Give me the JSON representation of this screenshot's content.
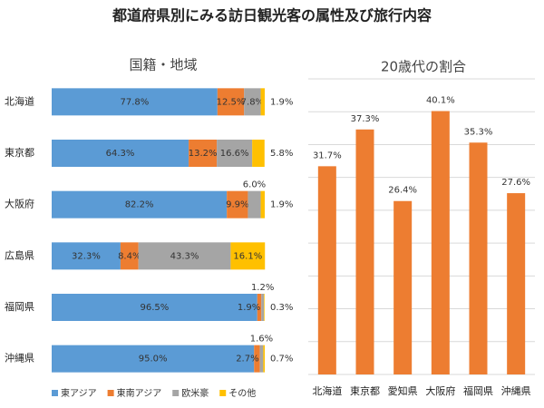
{
  "title": "都道府県別にみる訪日観光客の属性及び旅行内容",
  "chart_data": [
    {
      "type": "stacked-barh",
      "title": "国籍・地域",
      "categories": [
        "北海道",
        "東京都",
        "大阪府",
        "広島県",
        "福岡県",
        "沖縄県"
      ],
      "xlim": [
        0,
        100
      ],
      "legend": "bottom",
      "series": [
        {
          "name": "東アジア",
          "color": "#5b9bd5",
          "values": [
            77.8,
            64.3,
            82.2,
            32.3,
            96.5,
            95.0
          ],
          "value_labels": [
            "77.8%",
            "64.3%",
            "82.2%",
            "32.3%",
            "96.5%",
            "95.0%"
          ]
        },
        {
          "name": "東南アジア",
          "color": "#ed7d31",
          "values": [
            12.5,
            13.2,
            9.9,
            8.4,
            1.9,
            2.7
          ],
          "value_labels": [
            "12.5%",
            "13.2%",
            "9.9%",
            "8.4%",
            "1.9%",
            "2.7%"
          ]
        },
        {
          "name": "欧米豪",
          "color": "#a5a5a5",
          "values": [
            7.8,
            16.6,
            6.0,
            43.3,
            1.2,
            1.6
          ],
          "value_labels": [
            "7.8%",
            "16.6%",
            "6.0%",
            "43.3%",
            "1.2%",
            "1.6%"
          ]
        },
        {
          "name": "その他",
          "color": "#ffc000",
          "values": [
            1.9,
            5.8,
            1.9,
            16.1,
            0.3,
            0.7
          ],
          "value_labels": [
            "1.9%",
            "5.8%",
            "1.9%",
            "16.1%",
            "0.3%",
            "0.7%"
          ]
        }
      ]
    },
    {
      "type": "bar",
      "title": "20歳代の割合",
      "categories": [
        "北海道",
        "東京都",
        "愛知県",
        "大阪府",
        "福岡県",
        "沖縄県"
      ],
      "values": [
        31.7,
        37.3,
        26.4,
        40.1,
        35.3,
        27.6
      ],
      "value_labels": [
        "31.7%",
        "37.3%",
        "26.4%",
        "40.1%",
        "35.3%",
        "27.6%"
      ],
      "color": "#ed7d31",
      "ylim": [
        0,
        45
      ],
      "yticks": [
        0,
        5,
        10,
        15,
        20,
        25,
        30,
        35,
        40,
        45
      ],
      "grid": true,
      "tick_labels": false
    }
  ]
}
